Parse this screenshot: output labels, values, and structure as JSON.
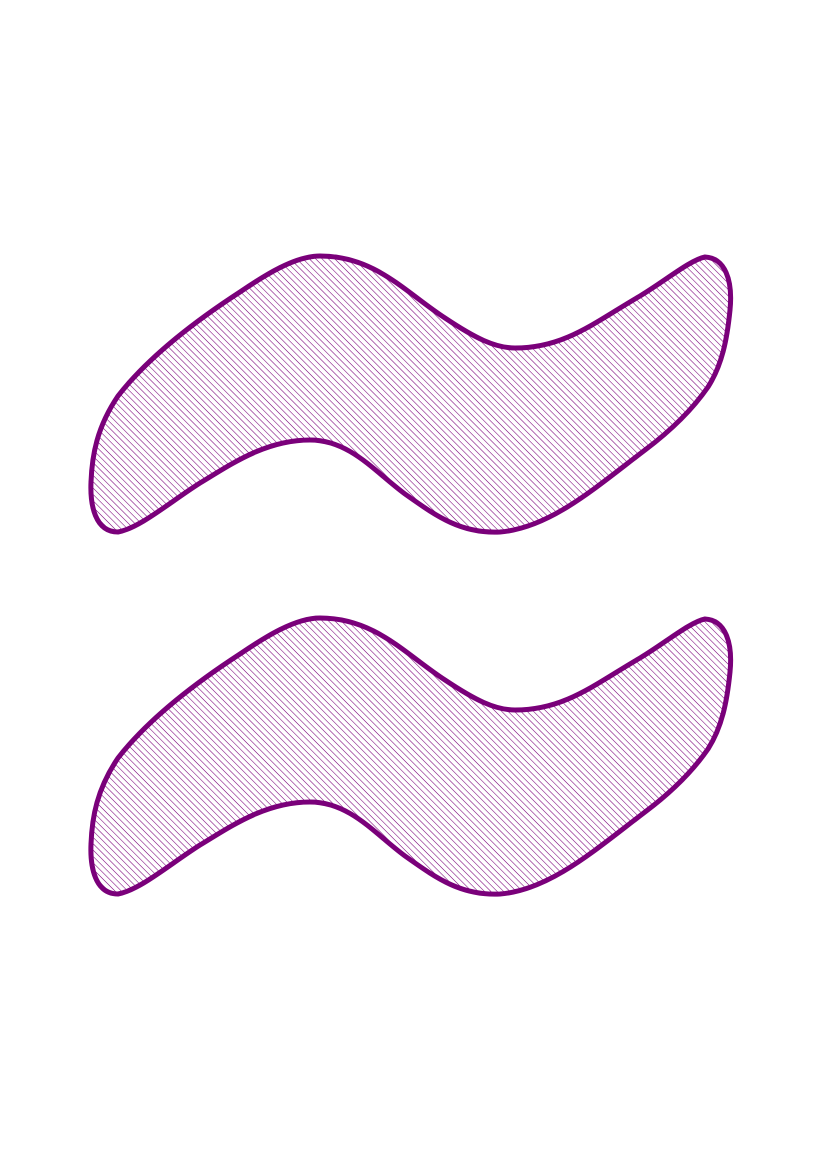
{
  "figure": {
    "shapes": [
      {
        "name": "wave-shape-top",
        "kind": "hatched wavy blob"
      },
      {
        "name": "wave-shape-bottom",
        "kind": "hatched wavy blob"
      }
    ],
    "colors": {
      "stroke": "#7a007a",
      "hatch": "#7a007a",
      "background": "#ffffff"
    }
  }
}
